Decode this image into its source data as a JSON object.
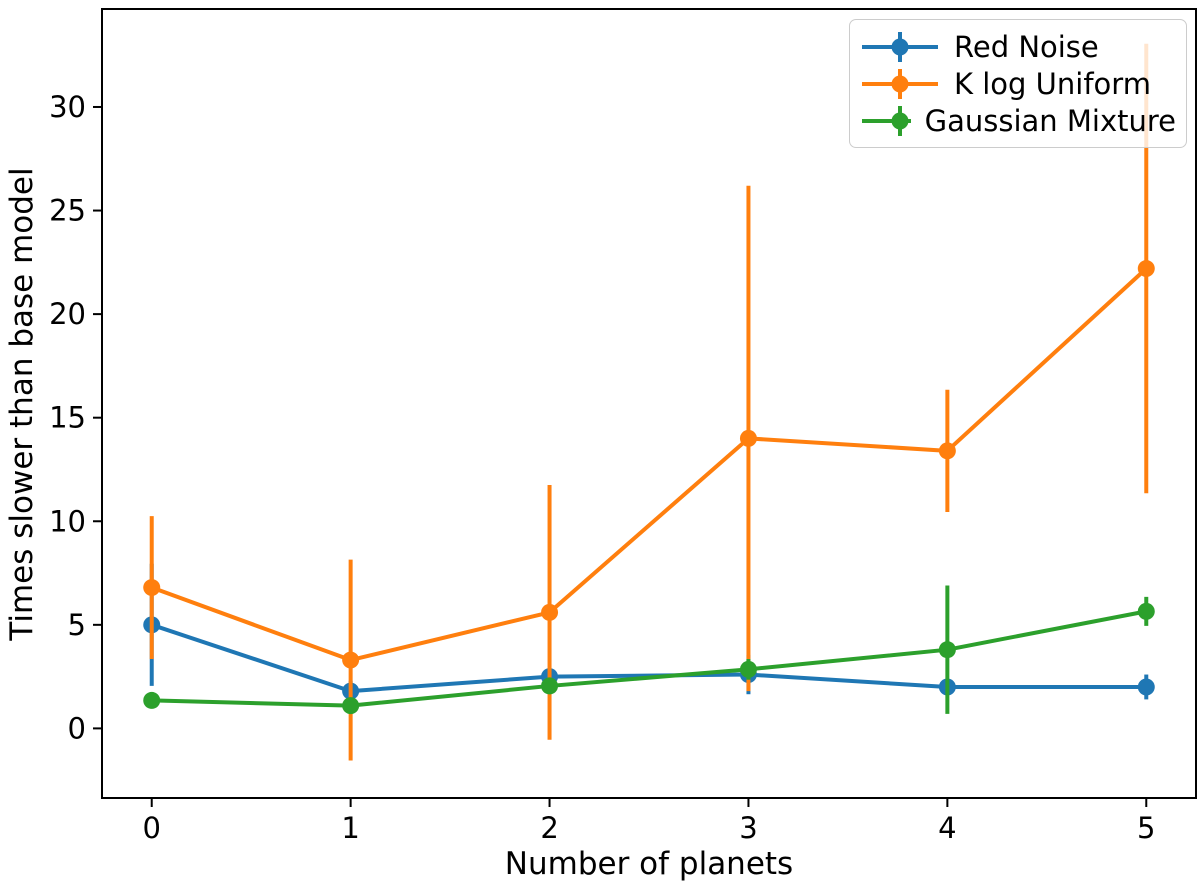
{
  "chart_data": {
    "type": "line",
    "x": [
      0,
      1,
      2,
      3,
      4,
      5
    ],
    "series": [
      {
        "name": "Red Noise",
        "color": "#1f77b4",
        "values": [
          5.0,
          1.8,
          2.5,
          2.6,
          2.0,
          2.0
        ],
        "errors": [
          2.95,
          0.5,
          0.4,
          0.95,
          0.3,
          0.6
        ]
      },
      {
        "name": "K log Uniform",
        "color": "#ff7f0e",
        "values": [
          6.8,
          3.3,
          5.6,
          14.0,
          13.4,
          22.2
        ],
        "errors": [
          3.45,
          4.85,
          6.15,
          12.2,
          2.95,
          10.85
        ]
      },
      {
        "name": "Gaussian Mixture",
        "color": "#2ca02c",
        "values": [
          1.35,
          1.1,
          2.05,
          2.85,
          3.8,
          5.65
        ],
        "errors": [
          0.1,
          0.2,
          0.25,
          0.5,
          3.1,
          0.7
        ]
      }
    ],
    "xlabel": "Number of planets",
    "ylabel": "Times slower than base model",
    "xticks": [
      "0",
      "1",
      "2",
      "3",
      "4",
      "5"
    ],
    "yticks": [
      "0",
      "5",
      "10",
      "15",
      "20",
      "25",
      "30"
    ],
    "xtick_values": [
      0,
      1,
      2,
      3,
      4,
      5
    ],
    "ytick_values": [
      0,
      5,
      10,
      15,
      20,
      25,
      30
    ],
    "xlim": [
      -0.25,
      5.25
    ],
    "ylim": [
      -3.36,
      34.73
    ],
    "grid": false,
    "legend_position": "upper right",
    "marker": "circle",
    "error_caps": false
  }
}
